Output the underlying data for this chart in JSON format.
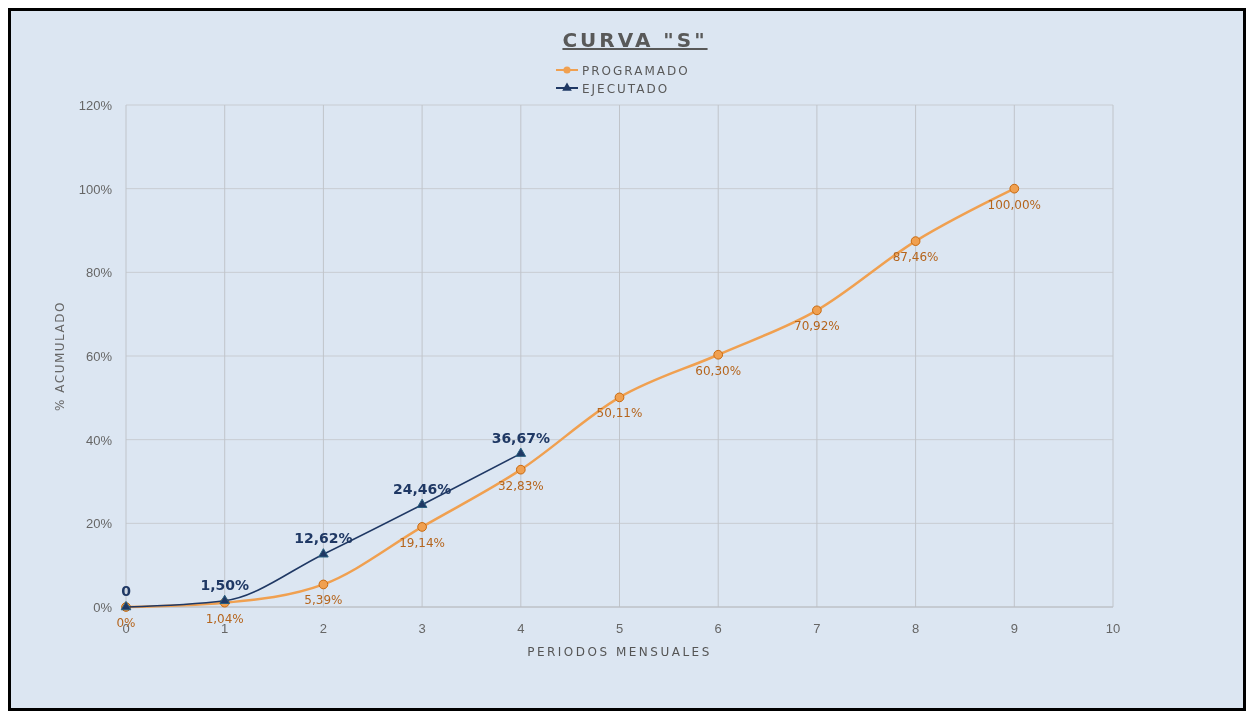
{
  "chart_data": {
    "type": "line",
    "title": "CURVA \"S\"",
    "xlabel": "PERIODOS MENSUALES",
    "ylabel": "% ACUMULADO",
    "xlim": [
      0,
      10
    ],
    "xticks": [
      0,
      1,
      2,
      3,
      4,
      5,
      6,
      7,
      8,
      9,
      10
    ],
    "ylim": [
      0,
      120
    ],
    "yticks": [
      {
        "value": 0,
        "label": "0%"
      },
      {
        "value": 20,
        "label": "20%"
      },
      {
        "value": 40,
        "label": "40%"
      },
      {
        "value": 60,
        "label": "60%"
      },
      {
        "value": 80,
        "label": "80%"
      },
      {
        "value": 100,
        "label": "100%"
      },
      {
        "value": 120,
        "label": "120%"
      }
    ],
    "grid": true,
    "legend": "top",
    "series": [
      {
        "name": "PROGRAMADO",
        "color": "#f0a050",
        "marker": "circle",
        "x": [
          0,
          1,
          2,
          3,
          4,
          5,
          6,
          7,
          8,
          9
        ],
        "values": [
          0,
          1.04,
          5.39,
          19.14,
          32.83,
          50.11,
          60.3,
          70.92,
          87.46,
          100
        ],
        "value_labels": [
          "0%",
          "1,04%",
          "5,39%",
          "19,14%",
          "32,83%",
          "50,11%",
          "60,30%",
          "70,92%",
          "87,46%",
          "100,00%"
        ]
      },
      {
        "name": "EJECUTADO",
        "color": "#1f3864",
        "marker": "triangle",
        "x": [
          0,
          1,
          2,
          3,
          4
        ],
        "values": [
          0,
          1.5,
          12.62,
          24.46,
          36.67
        ],
        "value_labels": [
          "0",
          "1,50%",
          "12,62%",
          "24,46%",
          "36,67%"
        ]
      }
    ]
  }
}
